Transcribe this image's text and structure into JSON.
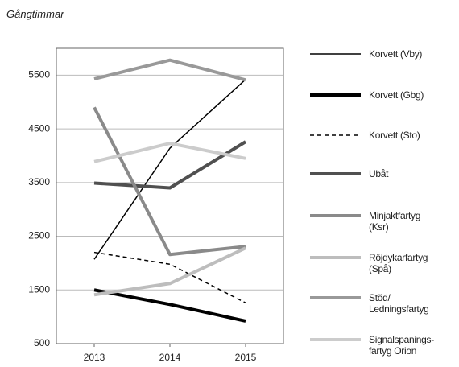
{
  "chart_data": {
    "type": "line",
    "title": "Gångtimmar",
    "categories": [
      "2013",
      "2014",
      "2015"
    ],
    "series": [
      {
        "name": "Korvett (Vby)",
        "color": "#000000",
        "width": 1.5,
        "dash": false,
        "values": [
          2070,
          4140,
          5420
        ]
      },
      {
        "name": "Korvett (Gbg)",
        "color": "#000000",
        "width": 4,
        "dash": false,
        "values": [
          1500,
          1230,
          920
        ]
      },
      {
        "name": "Korvett (Sto)",
        "color": "#000000",
        "width": 1.5,
        "dash": true,
        "values": [
          2200,
          1980,
          1260
        ]
      },
      {
        "name": "Ubåt",
        "color": "#505050",
        "width": 4,
        "dash": false,
        "values": [
          3490,
          3400,
          4260
        ]
      },
      {
        "name": "Minjaktfartyg\n(Ksr)",
        "color": "#8a8a8a",
        "width": 4,
        "dash": false,
        "values": [
          4900,
          2160,
          2310
        ]
      },
      {
        "name": "Röjdykarfartyg\n(Spå)",
        "color": "#bdbdbd",
        "width": 4,
        "dash": false,
        "values": [
          1410,
          1620,
          2280
        ]
      },
      {
        "name": "Stöd/\nLedningsfartyg",
        "color": "#999999",
        "width": 4,
        "dash": false,
        "values": [
          5430,
          5780,
          5410
        ]
      },
      {
        "name": "Signalspanings-\nfartyg Orion",
        "color": "#cccccc",
        "width": 4,
        "dash": false,
        "values": [
          3890,
          4230,
          3950
        ]
      }
    ],
    "ylim": [
      500,
      6000
    ],
    "yticks": [
      500,
      1500,
      2500,
      3500,
      4500,
      5500
    ],
    "grid": true
  }
}
